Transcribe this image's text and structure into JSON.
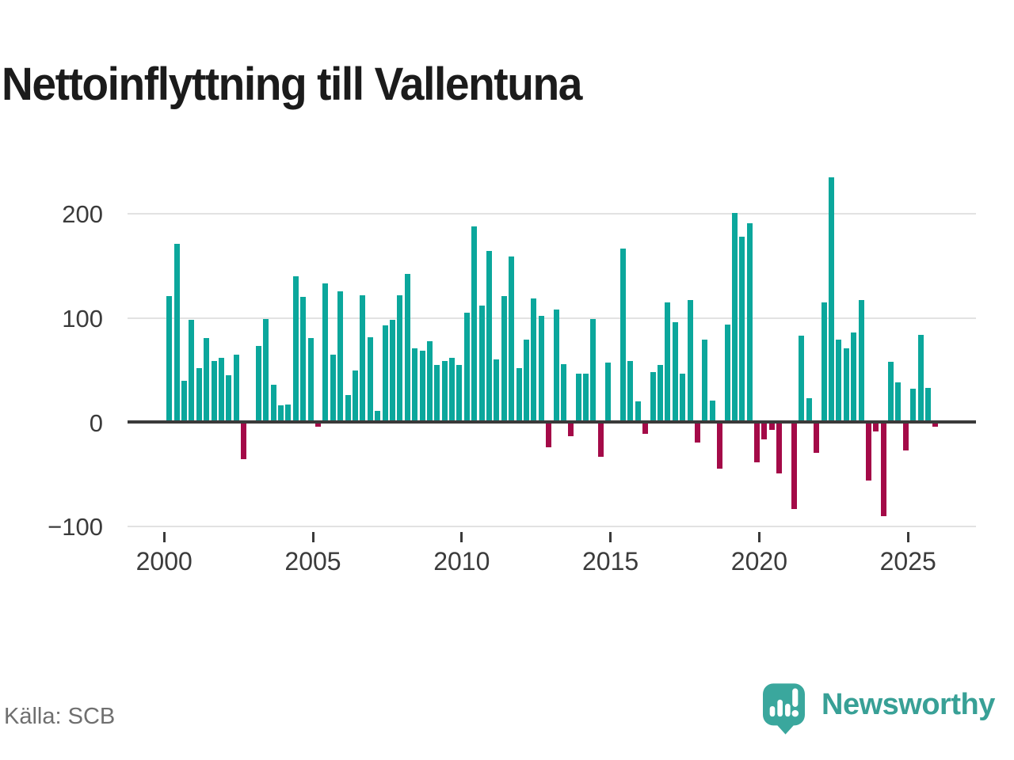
{
  "header": {
    "title": "Nettoinflyttning till Vallentuna"
  },
  "footer": {
    "source_label": "Källa: SCB",
    "brand_name": "Newsworthy"
  },
  "chart_data": {
    "type": "bar",
    "title": "Nettoinflyttning till Vallentuna",
    "frequency": "quarterly",
    "start_year": 2000,
    "start_quarter": 1,
    "values": [
      121,
      171,
      40,
      98,
      52,
      81,
      59,
      62,
      45,
      65,
      -35,
      0,
      73,
      99,
      36,
      16,
      17,
      140,
      120,
      81,
      -4,
      133,
      65,
      126,
      26,
      50,
      122,
      82,
      11,
      93,
      98,
      122,
      142,
      71,
      69,
      78,
      55,
      59,
      62,
      55,
      105,
      188,
      112,
      164,
      60,
      121,
      159,
      52,
      79,
      119,
      102,
      -24,
      108,
      56,
      -13,
      47,
      47,
      99,
      -33,
      57,
      0,
      167,
      59,
      20,
      -11,
      48,
      55,
      115,
      96,
      47,
      117,
      -19,
      79,
      21,
      -44,
      94,
      201,
      178,
      191,
      -38,
      -16,
      -7,
      -49,
      0,
      -83,
      83,
      23,
      -29,
      115,
      235,
      79,
      71,
      86,
      117,
      -56,
      -9,
      -90,
      58,
      38,
      -27,
      32,
      84,
      33,
      -4
    ],
    "x_tick_labels": [
      "2000",
      "2005",
      "2010",
      "2015",
      "2020",
      "2025"
    ],
    "y_ticks": [
      200,
      100,
      0,
      -100
    ],
    "y_tick_labels": [
      "200",
      "100",
      "0",
      "−100"
    ],
    "ylim": [
      -110,
      250
    ],
    "grid": true,
    "legend": false,
    "positive_color": "#0ba79c",
    "negative_color": "#a40a48",
    "axis_color": "#3a3a3a",
    "grid_color": "#e2e2e2"
  }
}
